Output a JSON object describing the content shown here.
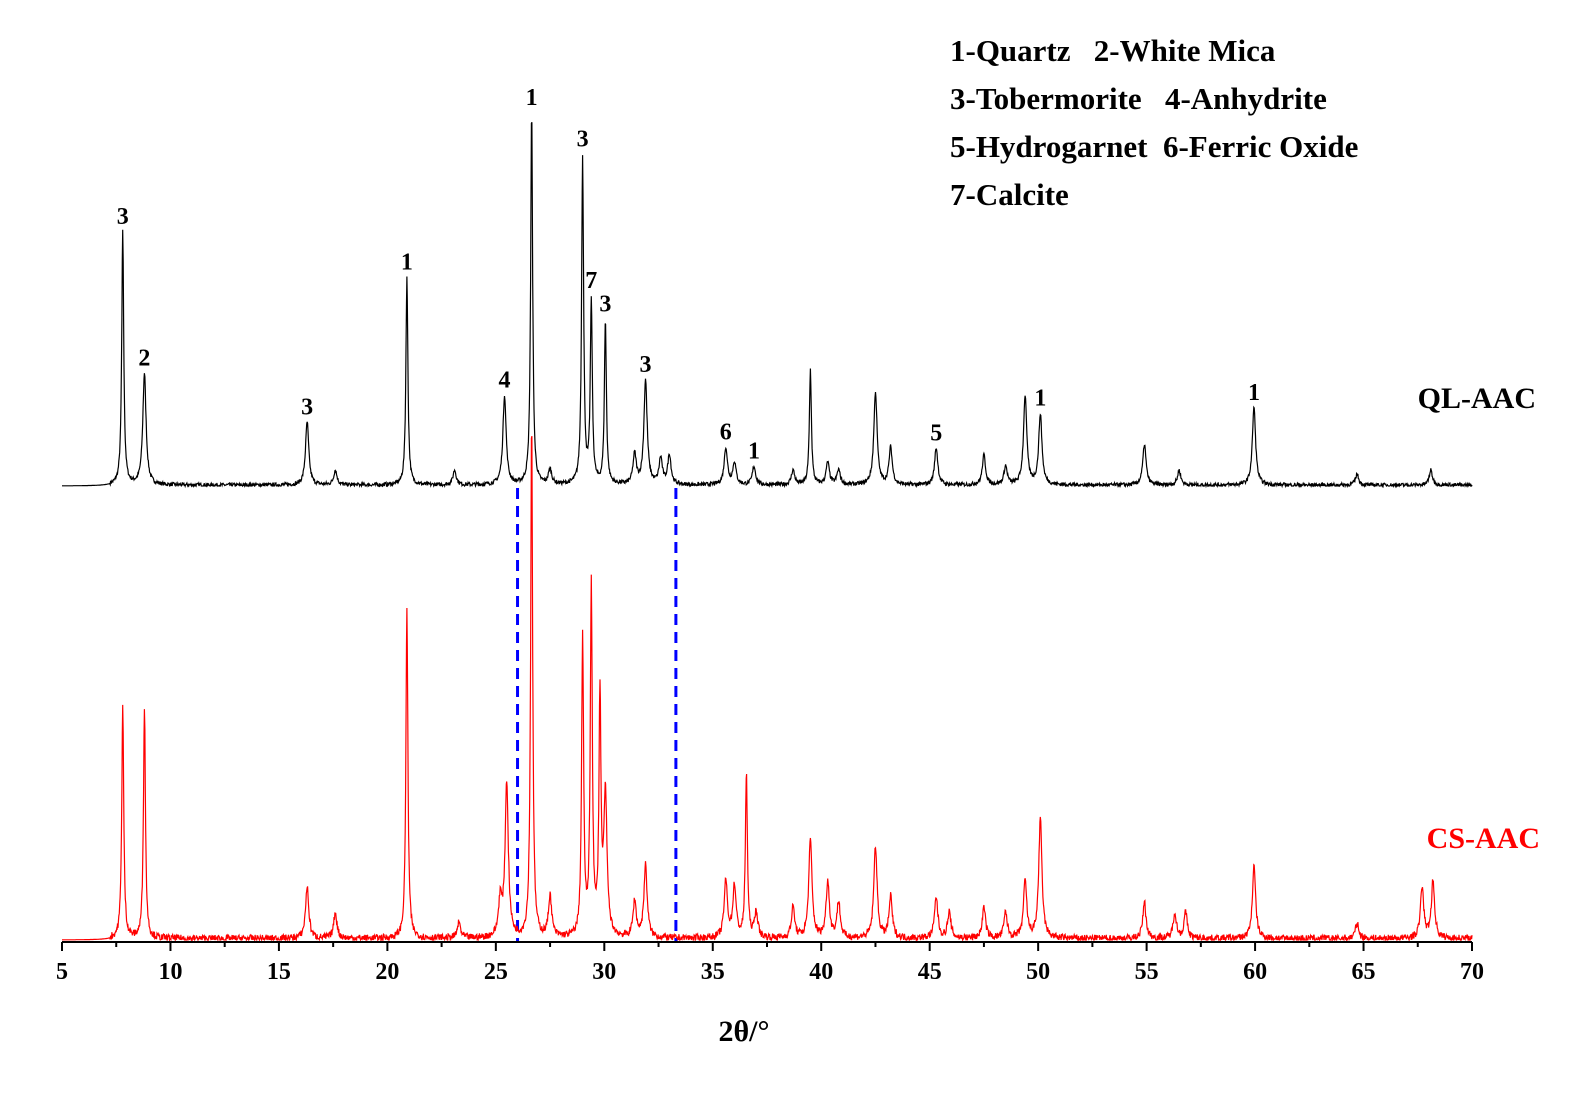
{
  "chart_data": {
    "type": "line",
    "title": "",
    "xlabel": "2θ/°",
    "ylabel": "",
    "xlim": [
      5,
      70
    ],
    "xticks": [
      "5",
      "10",
      "15",
      "20",
      "25",
      "30",
      "35",
      "40",
      "45",
      "50",
      "55",
      "60",
      "65",
      "70"
    ],
    "y_axis_visible": false,
    "grid": false,
    "legend": {
      "placement": "top-right",
      "lines": [
        "1-Quartz   2-White Mica",
        "3-Tobermorite   4-Anhydrite",
        "5-Hydrogarnet  6-Ferric Oxide",
        "7-Calcite"
      ]
    },
    "series": [
      {
        "name": "QL-AAC",
        "color": "#000000",
        "stack_position": "upper",
        "peaks": [
          {
            "x": 7.8,
            "intensity": 0.68
          },
          {
            "x": 8.8,
            "intensity": 0.3
          },
          {
            "x": 16.3,
            "intensity": 0.17
          },
          {
            "x": 17.6,
            "intensity": 0.04
          },
          {
            "x": 20.9,
            "intensity": 0.56
          },
          {
            "x": 23.1,
            "intensity": 0.04
          },
          {
            "x": 25.4,
            "intensity": 0.24
          },
          {
            "x": 26.65,
            "intensity": 1.0
          },
          {
            "x": 27.5,
            "intensity": 0.04
          },
          {
            "x": 29.0,
            "intensity": 0.88
          },
          {
            "x": 29.4,
            "intensity": 0.49
          },
          {
            "x": 30.05,
            "intensity": 0.44
          },
          {
            "x": 31.4,
            "intensity": 0.08
          },
          {
            "x": 31.9,
            "intensity": 0.28
          },
          {
            "x": 32.6,
            "intensity": 0.07
          },
          {
            "x": 33.0,
            "intensity": 0.08
          },
          {
            "x": 35.6,
            "intensity": 0.1
          },
          {
            "x": 36.0,
            "intensity": 0.06
          },
          {
            "x": 36.9,
            "intensity": 0.05
          },
          {
            "x": 38.7,
            "intensity": 0.04
          },
          {
            "x": 39.5,
            "intensity": 0.31
          },
          {
            "x": 40.3,
            "intensity": 0.06
          },
          {
            "x": 40.8,
            "intensity": 0.04
          },
          {
            "x": 42.5,
            "intensity": 0.25
          },
          {
            "x": 43.2,
            "intensity": 0.1
          },
          {
            "x": 45.3,
            "intensity": 0.1
          },
          {
            "x": 47.5,
            "intensity": 0.08
          },
          {
            "x": 48.5,
            "intensity": 0.05
          },
          {
            "x": 49.4,
            "intensity": 0.24
          },
          {
            "x": 50.1,
            "intensity": 0.19
          },
          {
            "x": 54.9,
            "intensity": 0.11
          },
          {
            "x": 56.5,
            "intensity": 0.04
          },
          {
            "x": 59.95,
            "intensity": 0.21
          },
          {
            "x": 64.7,
            "intensity": 0.03
          },
          {
            "x": 68.1,
            "intensity": 0.04
          }
        ]
      },
      {
        "name": "CS-AAC",
        "color": "#ff0000",
        "stack_position": "lower",
        "peaks": [
          {
            "x": 7.8,
            "intensity": 0.45
          },
          {
            "x": 8.8,
            "intensity": 0.45
          },
          {
            "x": 16.3,
            "intensity": 0.1
          },
          {
            "x": 17.6,
            "intensity": 0.05
          },
          {
            "x": 20.9,
            "intensity": 0.64
          },
          {
            "x": 23.3,
            "intensity": 0.03
          },
          {
            "x": 25.2,
            "intensity": 0.07
          },
          {
            "x": 25.5,
            "intensity": 0.3
          },
          {
            "x": 26.65,
            "intensity": 1.0
          },
          {
            "x": 27.5,
            "intensity": 0.08
          },
          {
            "x": 29.0,
            "intensity": 0.58
          },
          {
            "x": 29.4,
            "intensity": 0.68
          },
          {
            "x": 29.8,
            "intensity": 0.46
          },
          {
            "x": 30.05,
            "intensity": 0.27
          },
          {
            "x": 31.4,
            "intensity": 0.07
          },
          {
            "x": 31.9,
            "intensity": 0.14
          },
          {
            "x": 35.6,
            "intensity": 0.11
          },
          {
            "x": 36.0,
            "intensity": 0.1
          },
          {
            "x": 36.55,
            "intensity": 0.32
          },
          {
            "x": 37.0,
            "intensity": 0.05
          },
          {
            "x": 38.7,
            "intensity": 0.06
          },
          {
            "x": 39.5,
            "intensity": 0.19
          },
          {
            "x": 40.3,
            "intensity": 0.11
          },
          {
            "x": 40.8,
            "intensity": 0.07
          },
          {
            "x": 42.5,
            "intensity": 0.18
          },
          {
            "x": 43.2,
            "intensity": 0.08
          },
          {
            "x": 45.3,
            "intensity": 0.08
          },
          {
            "x": 45.9,
            "intensity": 0.05
          },
          {
            "x": 47.5,
            "intensity": 0.06
          },
          {
            "x": 48.5,
            "intensity": 0.05
          },
          {
            "x": 49.4,
            "intensity": 0.11
          },
          {
            "x": 50.1,
            "intensity": 0.23
          },
          {
            "x": 54.9,
            "intensity": 0.07
          },
          {
            "x": 56.3,
            "intensity": 0.05
          },
          {
            "x": 56.8,
            "intensity": 0.05
          },
          {
            "x": 59.95,
            "intensity": 0.14
          },
          {
            "x": 64.7,
            "intensity": 0.03
          },
          {
            "x": 67.7,
            "intensity": 0.1
          },
          {
            "x": 68.2,
            "intensity": 0.11
          }
        ]
      }
    ],
    "peak_labels": [
      {
        "text": "3",
        "x": 7.8
      },
      {
        "text": "2",
        "x": 8.8
      },
      {
        "text": "3",
        "x": 16.3
      },
      {
        "text": "1",
        "x": 20.9
      },
      {
        "text": "4",
        "x": 25.4
      },
      {
        "text": "1",
        "x": 26.65
      },
      {
        "text": "3",
        "x": 29.0
      },
      {
        "text": "7",
        "x": 29.4
      },
      {
        "text": "3",
        "x": 30.05
      },
      {
        "text": "3",
        "x": 31.9
      },
      {
        "text": "6",
        "x": 35.6
      },
      {
        "text": "1",
        "x": 36.9
      },
      {
        "text": "5",
        "x": 45.3
      },
      {
        "text": "1",
        "x": 50.1
      },
      {
        "text": "1",
        "x": 59.95
      }
    ],
    "reference_lines": [
      {
        "x": 26.0,
        "style": "dashed",
        "color": "#0000ff"
      },
      {
        "x": 33.3,
        "style": "dashed",
        "color": "#0000ff"
      }
    ]
  }
}
